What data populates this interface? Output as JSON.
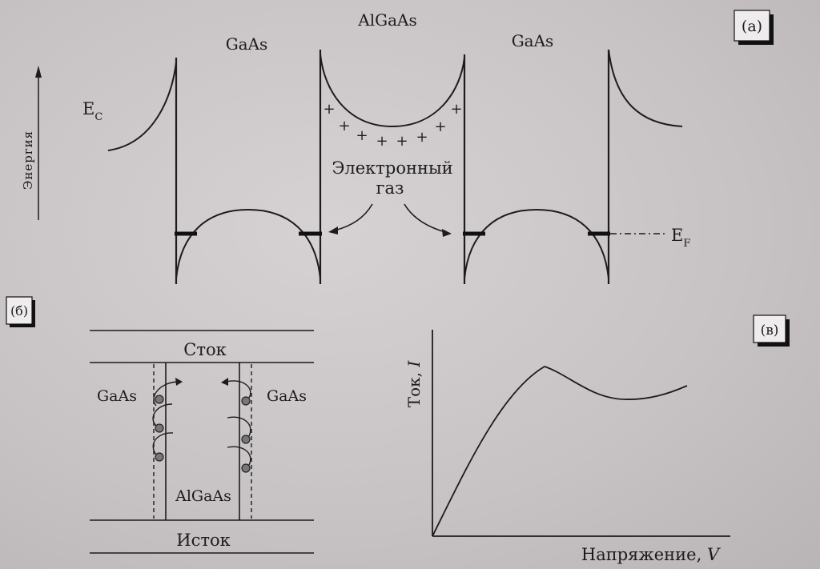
{
  "panel_a": {
    "tag": "(a)",
    "axis_label": "Энергия",
    "layer_left": "GaAs",
    "layer_middle": "AlGaAs",
    "layer_right": "GaAs",
    "ec_main": "E",
    "ec_sub": "C",
    "ef_main": "E",
    "ef_sub": "F",
    "plus_sign": "+",
    "gas_line1": "Электронный",
    "gas_line2": "газ"
  },
  "panel_b": {
    "tag": "(б)",
    "drain": "Сток",
    "source": "Исток",
    "left_layer": "GaAs",
    "right_layer": "GaAs",
    "channel": "AlGaAs"
  },
  "panel_c": {
    "tag": "(в)",
    "ylabel_text": "Ток, ",
    "ylabel_symbol": "I",
    "xlabel_text": "Напряжение, ",
    "xlabel_symbol": "V"
  }
}
